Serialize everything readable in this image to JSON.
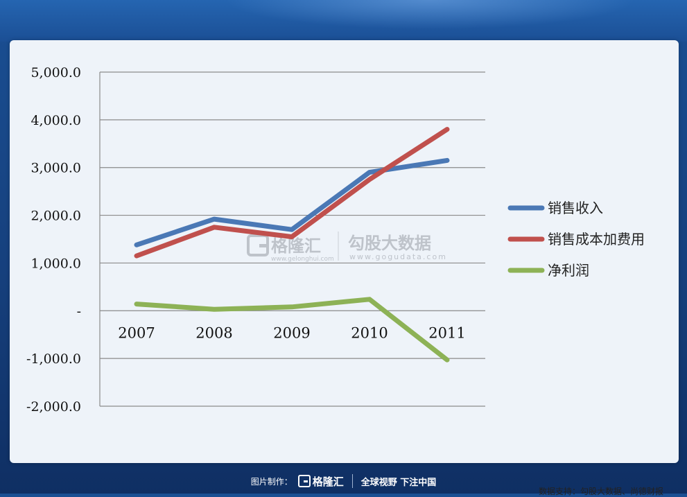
{
  "chart_data": {
    "type": "line",
    "categories": [
      "2007",
      "2008",
      "2009",
      "2010",
      "2011"
    ],
    "y_tick_labels": [
      "5,000.0",
      "4,000.0",
      "3,000.0",
      "2,000.0",
      "1,000.0",
      "-",
      "-1,000.0",
      "-2,000.0"
    ],
    "y_tick_values": [
      5000,
      4000,
      3000,
      2000,
      1000,
      0,
      -1000,
      -2000
    ],
    "ylim": [
      -2000,
      5000
    ],
    "grid": true,
    "legend_position": "right",
    "series": [
      {
        "name": "销售收入",
        "color": "#4a78b5",
        "values": [
          1380,
          1920,
          1700,
          2900,
          3150
        ]
      },
      {
        "name": "销售成本加费用",
        "color": "#c0504d",
        "values": [
          1150,
          1750,
          1550,
          2750,
          3800
        ]
      },
      {
        "name": "净利润",
        "color": "#8db256",
        "values": [
          140,
          30,
          80,
          240,
          -1030
        ]
      }
    ]
  },
  "watermark": {
    "brand": "格隆汇",
    "brand_url": "www.gelonghui.com",
    "partner": "勾股大数据",
    "partner_url": "www.gogudata.com"
  },
  "source_note": "数据支持：勾股大数据、尚德财报",
  "footer": {
    "made_by": "图片制作：",
    "logo": "格隆汇",
    "slogan": "全球视野 下注中国"
  }
}
